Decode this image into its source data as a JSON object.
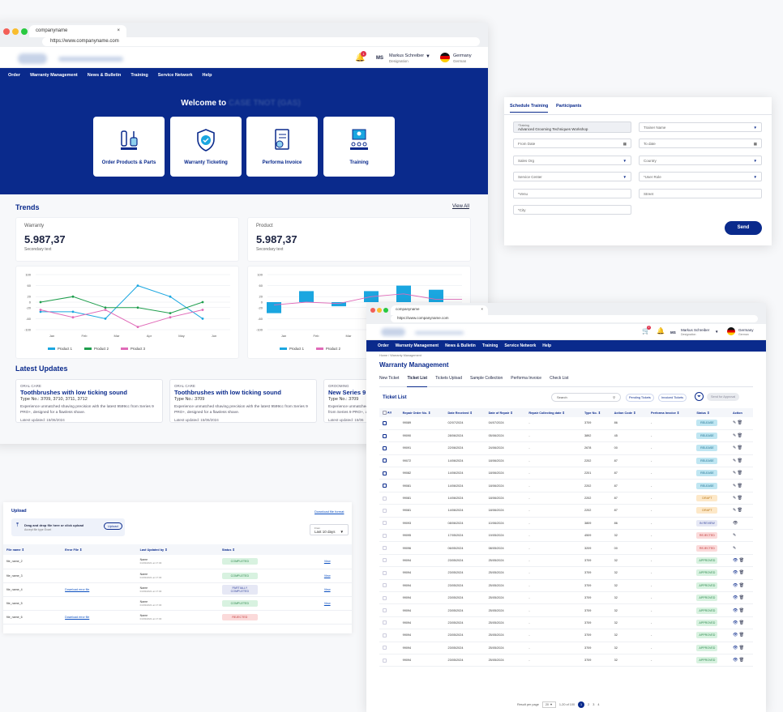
{
  "browser": {
    "tab": "companyname",
    "url": "https://www.companyname.com"
  },
  "header": {
    "initials": "MS",
    "user": "Markus Schreiber",
    "role": "Designation",
    "country": "Germany",
    "language": "German",
    "bell_count": "1",
    "cart_count": "2"
  },
  "nav": [
    "Order",
    "Warranty Management",
    "News & Bulletin",
    "Training",
    "Service Network",
    "Help"
  ],
  "hero": {
    "welcome": "Welcome to",
    "cards": [
      "Order Products & Parts",
      "Warranty Ticketing",
      "Performa Invoice",
      "Training"
    ]
  },
  "trends": {
    "title": "Trends",
    "view_all": "View All",
    "warranty": {
      "label": "Warranty",
      "value": "5.987,37",
      "sub": "Secondary text"
    },
    "product": {
      "label": "Product",
      "value": "5.987,37",
      "sub": "Secondary text"
    }
  },
  "chart_data": [
    {
      "type": "line",
      "categories": [
        "Jan",
        "Feb",
        "Mar",
        "Apr",
        "May",
        "Jun"
      ],
      "ylim": [
        -100,
        100
      ],
      "yticks": [
        "100",
        "60",
        "20",
        "0",
        "-20",
        "-60",
        "-100"
      ],
      "series": [
        {
          "name": "Product 1",
          "color": "#1aa6e0",
          "values": [
            -35,
            -35,
            -60,
            60,
            20,
            -60
          ]
        },
        {
          "name": "Product 2",
          "color": "#1f9e4d",
          "values": [
            0,
            20,
            -20,
            -20,
            -40,
            0
          ]
        },
        {
          "name": "Product 3",
          "color": "#e06ab8",
          "values": [
            -28,
            -55,
            -28,
            -90,
            -55,
            -28
          ]
        }
      ]
    },
    {
      "type": "bar",
      "categories": [
        "Jan",
        "Feb",
        "Mar",
        "Apr",
        "May",
        "Jun"
      ],
      "ylim": [
        -100,
        100
      ],
      "yticks": [
        "100",
        "60",
        "20",
        "0",
        "-20",
        "-60",
        "-100"
      ],
      "series": [
        {
          "name": "Product 1",
          "color": "#1aa6e0",
          "values": [
            -40,
            40,
            -15,
            40,
            60,
            45
          ]
        },
        {
          "name": "Product 2",
          "color": "#e06ab8",
          "values": [
            -10,
            0,
            -5,
            20,
            30,
            10
          ]
        }
      ]
    }
  ],
  "updates": {
    "title": "Latest Updates",
    "items": [
      {
        "cat": "ORAL CARE",
        "title": "Toothbrushes with low ticking sound",
        "type": "Type No.: 3709, 3710, 3711, 3712",
        "desc": "Experience unmatched shaving precision with the latest 9599cc from Series 9 PRO+, designed for a flawless shave.",
        "date": "Latest updated: 15/06/2024"
      },
      {
        "cat": "ORAL CARE",
        "title": "Toothbrushes with low ticking sound",
        "type": "Type No.: 3709",
        "desc": "Experience unmatched shaving precision with the latest 9599cc from Series 9 PRO+, designed for a flawless shave.",
        "date": "Latest updated: 15/06/2024"
      },
      {
        "cat": "GROOMING",
        "title": "New Series 9 P",
        "type": "Type No.: 3709",
        "desc": "Experience unmatched s from Series 9 PRO+, d",
        "date": "Latest updated: 15/06"
      }
    ]
  },
  "schedule": {
    "tabs": [
      "Schedule Training",
      "Participants"
    ],
    "training_label": "*Training",
    "training_value": "Advanced Grooming Techniques Workshop",
    "fields": [
      "Trainer Name",
      "From Date",
      "To date",
      "Sales Org",
      "Country",
      "Service Center",
      "*User Role",
      "*Venu",
      "Street",
      "*City"
    ],
    "send": "Send"
  },
  "upload": {
    "title": "Upload",
    "download_format": "Download file format",
    "drop": "Drag and drop file here or click upload",
    "accept": "Accept file type Excel",
    "upload_btn": "Upload",
    "from_label": "From",
    "from_value": "Last 10 days",
    "headers": [
      "File name",
      "Error File",
      "Last Updated by",
      "Status",
      ""
    ],
    "rows": [
      {
        "file": "file_name_2",
        "err": "",
        "by": "Name",
        "at": "01/03/2021 at 17:30",
        "status": "COMPLETED",
        "view": "View"
      },
      {
        "file": "file_name_3",
        "err": "",
        "by": "Name",
        "at": "01/03/2021 at 17:30",
        "status": "COMPLETED",
        "view": "View"
      },
      {
        "file": "file_name_4",
        "err": "Download error file",
        "by": "Name",
        "at": "01/03/2021 at 17:30",
        "status": "PARTIALLY COMPLETED",
        "view": "View"
      },
      {
        "file": "file_name_5",
        "err": "",
        "by": "Name",
        "at": "01/03/2021 at 17:30",
        "status": "COMPLETED",
        "view": "View"
      },
      {
        "file": "file_name_6",
        "err": "Download error file",
        "by": "Name",
        "at": "01/03/2021 at 17:30",
        "status": "REJECTED",
        "view": ""
      }
    ]
  },
  "warranty": {
    "breadcrumb": "Home / Warranty Management",
    "title": "Warranty Management",
    "tabs": [
      "New Ticket",
      "Ticket List",
      "Tickets Upload",
      "Sample Collection",
      "Performa Invoice",
      "Check List"
    ],
    "list_title": "Ticket List",
    "search": "Search",
    "pending": "Pending Tickets",
    "invoiced": "Invoiced Tickets",
    "send_approval": "Send for Approval",
    "headers": [
      "All",
      "Repair Order No.",
      "Date Received",
      "Date of Repair",
      "Repair Collecting date",
      "Type No.",
      "Action Code",
      "Performa Invoice",
      "Status",
      "Action"
    ],
    "rows": [
      [
        "99089",
        "02/07/2024",
        "04/07/2024",
        "-",
        "3709",
        "86",
        "-",
        "RELEASE"
      ],
      [
        "99090",
        "28/06/2024",
        "05/06/2024",
        "-",
        "3892",
        "45",
        "-",
        "RELEASE"
      ],
      [
        "99091",
        "22/06/2024",
        "24/06/2024",
        "-",
        "2678",
        "00",
        "-",
        "RELEASE"
      ],
      [
        "99072",
        "14/06/2024",
        "18/06/2024",
        "-",
        "2202",
        "87",
        "-",
        "RELEASE"
      ],
      [
        "99082",
        "14/06/2024",
        "18/06/2024",
        "-",
        "2201",
        "87",
        "-",
        "RELEASE"
      ],
      [
        "99081",
        "14/06/2024",
        "18/06/2024",
        "-",
        "2202",
        "87",
        "-",
        "RELEASE"
      ],
      [
        "99081",
        "14/06/2024",
        "18/06/2024",
        "-",
        "2202",
        "87",
        "-",
        "DRAFT"
      ],
      [
        "99081",
        "14/06/2024",
        "18/06/2024",
        "-",
        "2202",
        "87",
        "-",
        "DRAFT"
      ],
      [
        "99093",
        "08/06/2024",
        "10/06/2024",
        "-",
        "3809",
        "86",
        "-",
        "IN REVIEW"
      ],
      [
        "99095",
        "17/05/2024",
        "19/05/2024",
        "-",
        "4509",
        "32",
        "-",
        "REJECTED"
      ],
      [
        "99096",
        "06/05/2024",
        "08/05/2024",
        "-",
        "3209",
        "00",
        "-",
        "REJECTED"
      ],
      [
        "99094",
        "23/05/2024",
        "25/05/2024",
        "-",
        "3709",
        "32",
        "-",
        "APPROVED"
      ],
      [
        "99094",
        "23/05/2024",
        "25/05/2024",
        "-",
        "3709",
        "32",
        "-",
        "APPROVED"
      ],
      [
        "99094",
        "23/05/2024",
        "25/05/2024",
        "-",
        "3709",
        "32",
        "-",
        "APPROVED"
      ],
      [
        "99094",
        "23/05/2024",
        "25/05/2024",
        "-",
        "3709",
        "32",
        "-",
        "APPROVED"
      ],
      [
        "99094",
        "23/05/2024",
        "25/05/2024",
        "-",
        "3709",
        "32",
        "-",
        "APPROVED"
      ],
      [
        "99094",
        "23/05/2024",
        "25/05/2024",
        "-",
        "3709",
        "32",
        "-",
        "APPROVED"
      ],
      [
        "99094",
        "23/05/2024",
        "25/05/2024",
        "-",
        "3709",
        "32",
        "-",
        "APPROVED"
      ],
      [
        "99094",
        "23/05/2024",
        "25/05/2024",
        "-",
        "3709",
        "32",
        "-",
        "APPROVED"
      ],
      [
        "99094",
        "23/05/2024",
        "25/05/2024",
        "-",
        "3709",
        "32",
        "-",
        "APPROVED"
      ]
    ],
    "pager": {
      "label": "Result per page",
      "size": "20",
      "range": "1-20 of 100",
      "pages": [
        "1",
        "2",
        "3",
        "4"
      ]
    }
  },
  "colors": {
    "navy": "#0a2a8c",
    "release": "#bfe6f2",
    "draft": "#fde8c8",
    "review": "#e6e8f5",
    "rejected": "#fbdada",
    "approved": "#d8f2e0",
    "completed": "#d8f2e0"
  }
}
